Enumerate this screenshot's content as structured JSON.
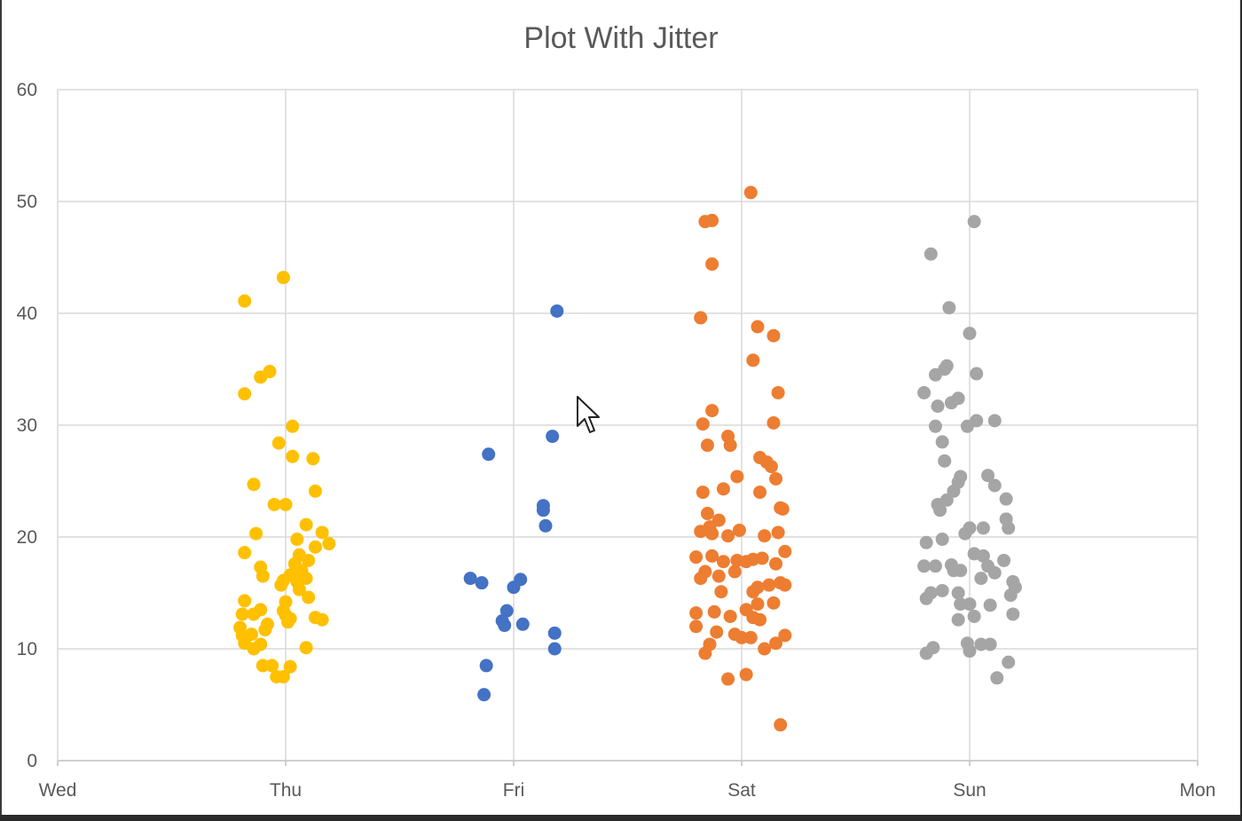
{
  "chart_data": {
    "type": "scatter",
    "title": "Plot With Jitter",
    "xlabel": "",
    "ylabel": "",
    "x_ticks": [
      "Wed",
      "Thu",
      "Fri",
      "Sat",
      "Sun",
      "Mon"
    ],
    "xlim": [
      0,
      5
    ],
    "ylim": [
      0,
      60
    ],
    "y_ticks": [
      0,
      10,
      20,
      30,
      40,
      50,
      60
    ],
    "grid": true,
    "legend": "none",
    "series": [
      {
        "color": "#FFC000",
        "points": [
          [
            0.82,
            41.1
          ],
          [
            0.99,
            43.2
          ],
          [
            0.82,
            32.8
          ],
          [
            0.89,
            34.3
          ],
          [
            0.93,
            34.8
          ],
          [
            1.03,
            29.9
          ],
          [
            0.97,
            28.4
          ],
          [
            1.03,
            27.2
          ],
          [
            1.12,
            27.0
          ],
          [
            0.86,
            24.7
          ],
          [
            1.13,
            24.1
          ],
          [
            0.95,
            22.9
          ],
          [
            1.0,
            22.9
          ],
          [
            1.09,
            21.1
          ],
          [
            1.16,
            20.4
          ],
          [
            0.87,
            20.3
          ],
          [
            1.05,
            19.8
          ],
          [
            1.19,
            19.4
          ],
          [
            1.13,
            19.1
          ],
          [
            0.82,
            18.6
          ],
          [
            1.06,
            18.4
          ],
          [
            1.04,
            17.6
          ],
          [
            1.1,
            17.9
          ],
          [
            0.89,
            17.3
          ],
          [
            1.07,
            17.0
          ],
          [
            1.02,
            16.6
          ],
          [
            0.9,
            16.5
          ],
          [
            1.09,
            16.3
          ],
          [
            0.99,
            16.1
          ],
          [
            1.05,
            16.0
          ],
          [
            0.98,
            15.7
          ],
          [
            1.06,
            15.3
          ],
          [
            1.1,
            14.6
          ],
          [
            0.82,
            14.3
          ],
          [
            1.0,
            14.2
          ],
          [
            0.89,
            13.5
          ],
          [
            0.99,
            13.4
          ],
          [
            0.81,
            13.1
          ],
          [
            0.86,
            13.1
          ],
          [
            1.0,
            13.0
          ],
          [
            1.02,
            12.7
          ],
          [
            1.13,
            12.8
          ],
          [
            1.16,
            12.6
          ],
          [
            1.01,
            12.4
          ],
          [
            0.92,
            12.2
          ],
          [
            0.8,
            11.9
          ],
          [
            0.91,
            11.7
          ],
          [
            0.85,
            11.3
          ],
          [
            0.81,
            11.2
          ],
          [
            0.82,
            10.5
          ],
          [
            0.89,
            10.4
          ],
          [
            0.86,
            10.0
          ],
          [
            1.09,
            10.1
          ],
          [
            0.9,
            8.5
          ],
          [
            0.94,
            8.5
          ],
          [
            1.02,
            8.4
          ],
          [
            0.96,
            7.5
          ],
          [
            0.99,
            7.5
          ]
        ]
      },
      {
        "color": "#4472C4",
        "points": [
          [
            2.19,
            40.2
          ],
          [
            2.17,
            29.0
          ],
          [
            1.89,
            27.4
          ],
          [
            2.13,
            22.8
          ],
          [
            2.13,
            22.4
          ],
          [
            2.14,
            21.0
          ],
          [
            1.81,
            16.3
          ],
          [
            1.86,
            15.9
          ],
          [
            2.03,
            16.2
          ],
          [
            2.0,
            15.5
          ],
          [
            1.97,
            13.4
          ],
          [
            1.95,
            12.5
          ],
          [
            1.96,
            12.1
          ],
          [
            2.04,
            12.2
          ],
          [
            2.18,
            11.4
          ],
          [
            2.18,
            10.0
          ],
          [
            1.88,
            8.5
          ],
          [
            1.87,
            5.9
          ]
        ]
      },
      {
        "color": "#ED7D31",
        "points": [
          [
            3.04,
            50.8
          ],
          [
            2.84,
            48.2
          ],
          [
            2.87,
            48.3
          ],
          [
            2.87,
            44.4
          ],
          [
            2.82,
            39.6
          ],
          [
            3.07,
            38.8
          ],
          [
            3.14,
            38.0
          ],
          [
            3.05,
            35.8
          ],
          [
            3.16,
            32.9
          ],
          [
            2.83,
            30.1
          ],
          [
            2.87,
            31.3
          ],
          [
            3.14,
            30.2
          ],
          [
            2.94,
            29.0
          ],
          [
            2.85,
            28.2
          ],
          [
            2.95,
            28.2
          ],
          [
            3.08,
            27.1
          ],
          [
            3.11,
            26.7
          ],
          [
            3.13,
            26.3
          ],
          [
            3.15,
            25.2
          ],
          [
            2.98,
            25.4
          ],
          [
            2.92,
            24.3
          ],
          [
            2.83,
            24.0
          ],
          [
            3.08,
            24.0
          ],
          [
            3.17,
            22.6
          ],
          [
            3.18,
            22.5
          ],
          [
            2.85,
            22.1
          ],
          [
            2.9,
            21.5
          ],
          [
            2.86,
            20.9
          ],
          [
            2.82,
            20.5
          ],
          [
            2.87,
            20.3
          ],
          [
            2.94,
            20.1
          ],
          [
            2.99,
            20.6
          ],
          [
            3.1,
            20.1
          ],
          [
            3.16,
            20.4
          ],
          [
            2.8,
            18.2
          ],
          [
            3.19,
            18.7
          ],
          [
            2.87,
            18.3
          ],
          [
            2.92,
            17.8
          ],
          [
            2.98,
            17.9
          ],
          [
            3.02,
            17.8
          ],
          [
            3.05,
            18.0
          ],
          [
            3.09,
            18.1
          ],
          [
            3.15,
            17.6
          ],
          [
            2.84,
            16.9
          ],
          [
            2.9,
            16.5
          ],
          [
            2.97,
            16.9
          ],
          [
            2.82,
            16.3
          ],
          [
            3.07,
            15.5
          ],
          [
            3.12,
            15.7
          ],
          [
            3.17,
            15.9
          ],
          [
            3.19,
            15.7
          ],
          [
            2.91,
            15.1
          ],
          [
            3.05,
            15.1
          ],
          [
            3.14,
            14.1
          ],
          [
            3.07,
            14.0
          ],
          [
            3.02,
            13.5
          ],
          [
            2.8,
            13.2
          ],
          [
            2.88,
            13.3
          ],
          [
            2.95,
            12.9
          ],
          [
            3.05,
            12.8
          ],
          [
            3.08,
            12.6
          ],
          [
            2.8,
            12.0
          ],
          [
            2.89,
            11.5
          ],
          [
            2.97,
            11.3
          ],
          [
            3.0,
            11.0
          ],
          [
            3.04,
            11.0
          ],
          [
            3.19,
            11.2
          ],
          [
            2.86,
            10.4
          ],
          [
            3.1,
            10.0
          ],
          [
            3.15,
            10.5
          ],
          [
            2.84,
            9.6
          ],
          [
            2.94,
            7.3
          ],
          [
            3.02,
            7.7
          ],
          [
            3.17,
            3.2
          ]
        ]
      },
      {
        "color": "#A5A5A5",
        "points": [
          [
            4.02,
            48.2
          ],
          [
            3.83,
            45.3
          ],
          [
            3.91,
            40.5
          ],
          [
            4.0,
            38.2
          ],
          [
            3.85,
            34.5
          ],
          [
            3.89,
            35.0
          ],
          [
            3.9,
            35.3
          ],
          [
            4.03,
            34.6
          ],
          [
            3.8,
            32.9
          ],
          [
            3.86,
            31.7
          ],
          [
            3.92,
            32.0
          ],
          [
            3.95,
            32.4
          ],
          [
            3.85,
            29.9
          ],
          [
            4.03,
            30.4
          ],
          [
            4.11,
            30.4
          ],
          [
            3.99,
            29.9
          ],
          [
            3.88,
            28.5
          ],
          [
            3.89,
            26.8
          ],
          [
            3.96,
            25.4
          ],
          [
            4.08,
            25.5
          ],
          [
            4.11,
            24.6
          ],
          [
            3.95,
            24.9
          ],
          [
            3.93,
            24.1
          ],
          [
            3.9,
            23.3
          ],
          [
            3.86,
            22.9
          ],
          [
            4.16,
            23.4
          ],
          [
            3.87,
            22.4
          ],
          [
            4.16,
            21.6
          ],
          [
            4.17,
            20.8
          ],
          [
            4.06,
            20.8
          ],
          [
            4.0,
            20.8
          ],
          [
            3.98,
            20.3
          ],
          [
            3.81,
            19.5
          ],
          [
            3.88,
            19.8
          ],
          [
            4.02,
            18.5
          ],
          [
            4.06,
            18.3
          ],
          [
            4.15,
            17.9
          ],
          [
            3.8,
            17.4
          ],
          [
            3.85,
            17.4
          ],
          [
            3.92,
            17.5
          ],
          [
            3.93,
            17.0
          ],
          [
            3.96,
            17.0
          ],
          [
            4.08,
            17.4
          ],
          [
            4.11,
            16.8
          ],
          [
            4.05,
            16.3
          ],
          [
            4.19,
            16.0
          ],
          [
            4.2,
            15.5
          ],
          [
            3.83,
            15.0
          ],
          [
            3.88,
            15.2
          ],
          [
            3.95,
            15.0
          ],
          [
            4.18,
            14.8
          ],
          [
            3.81,
            14.5
          ],
          [
            3.96,
            14.0
          ],
          [
            4.0,
            14.0
          ],
          [
            4.09,
            13.9
          ],
          [
            4.19,
            13.1
          ],
          [
            4.02,
            12.9
          ],
          [
            3.95,
            12.6
          ],
          [
            3.84,
            10.1
          ],
          [
            3.81,
            9.6
          ],
          [
            3.99,
            10.5
          ],
          [
            4.05,
            10.4
          ],
          [
            4.09,
            10.4
          ],
          [
            4.0,
            9.8
          ],
          [
            4.17,
            8.8
          ],
          [
            4.12,
            7.4
          ]
        ]
      }
    ]
  }
}
